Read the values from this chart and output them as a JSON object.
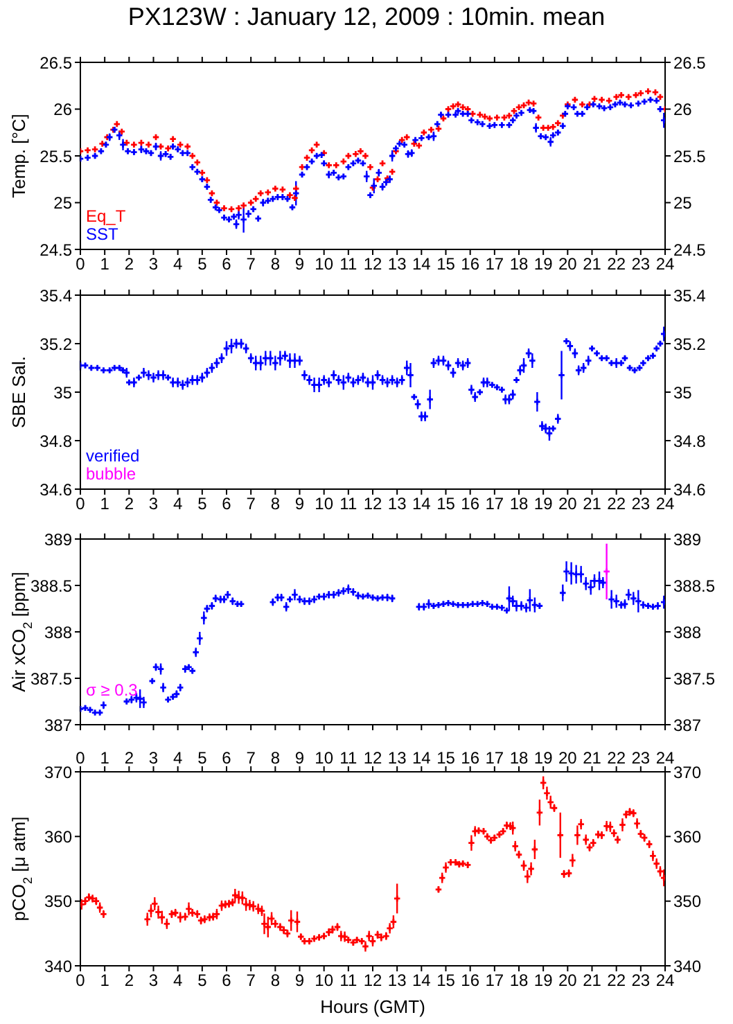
{
  "chart_data": [
    {
      "type": "scatter",
      "title": "PX123W : January 12, 2009 : 10min. mean",
      "ylabel": "Temp. [°C]",
      "xlim": [
        0,
        24
      ],
      "xticks": [
        0,
        1,
        2,
        3,
        4,
        5,
        6,
        7,
        8,
        9,
        10,
        11,
        12,
        13,
        14,
        15,
        16,
        17,
        18,
        19,
        20,
        21,
        22,
        23,
        24
      ],
      "ylim": [
        24.5,
        26.5
      ],
      "yticks": [
        24.5,
        25,
        25.5,
        26,
        26.5
      ],
      "y2lim": [
        24.5,
        26.5
      ],
      "y2ticks": [
        24.5,
        25,
        25.5,
        26,
        26.5
      ],
      "marker": "cross",
      "series": [
        {
          "name": "Eq_T",
          "color": "#ff0000",
          "x": [
            0,
            0.3,
            0.6,
            0.9,
            1.1,
            1.35,
            1.5,
            1.7,
            1.9,
            2.2,
            2.5,
            2.8,
            3.1,
            3.3,
            3.6,
            3.8,
            4.1,
            4.4,
            4.6,
            4.8,
            5.0,
            5.2,
            5.4,
            5.6,
            5.9,
            6.2,
            6.5,
            6.7,
            7.0,
            7.2,
            7.4,
            7.7,
            8.0,
            8.3,
            8.6,
            8.8,
            8.85,
            9.1,
            9.3,
            9.5,
            9.7,
            10.0,
            10.2,
            10.5,
            10.8,
            11.0,
            11.3,
            11.5,
            11.7,
            11.9,
            12.0,
            12.2,
            12.4,
            12.6,
            12.8,
            12.95,
            13.2,
            13.4,
            13.7,
            13.9,
            14.1,
            14.4,
            14.7,
            14.9,
            15.1,
            15.3,
            15.5,
            15.7,
            15.9,
            16.1,
            16.4,
            16.6,
            16.8,
            17.1,
            17.4,
            17.6,
            17.8,
            18.0,
            18.2,
            18.4,
            18.6,
            18.8,
            19.0,
            19.2,
            19.4,
            19.6,
            19.8,
            20.0,
            20.3,
            20.6,
            20.9,
            21.1,
            21.4,
            21.7,
            22.0,
            22.2,
            22.5,
            22.8,
            23.0,
            23.3,
            23.6,
            23.8,
            24.0
          ],
          "values": [
            25.55,
            25.56,
            25.57,
            25.63,
            25.7,
            25.78,
            25.84,
            25.76,
            25.64,
            25.62,
            25.64,
            25.62,
            25.7,
            25.6,
            25.58,
            25.68,
            25.62,
            25.6,
            25.5,
            25.43,
            25.32,
            25.24,
            25.1,
            25.0,
            24.94,
            24.93,
            24.94,
            24.97,
            25.0,
            25.04,
            25.1,
            25.11,
            25.15,
            25.14,
            25.08,
            25.05,
            25.15,
            25.38,
            25.48,
            25.56,
            25.62,
            25.53,
            25.4,
            25.4,
            25.44,
            25.5,
            25.52,
            25.55,
            25.5,
            25.38,
            25.16,
            25.25,
            25.42,
            25.26,
            25.33,
            25.55,
            25.67,
            25.7,
            25.63,
            25.61,
            25.75,
            25.78,
            25.79,
            25.9,
            26.0,
            26.03,
            26.05,
            26.02,
            26.0,
            25.95,
            25.94,
            25.92,
            25.9,
            25.91,
            25.91,
            25.93,
            25.98,
            26.02,
            26.04,
            26.07,
            26.06,
            25.91,
            25.8,
            25.8,
            25.81,
            25.85,
            25.93,
            26.05,
            26.1,
            26.05,
            26.05,
            26.11,
            26.1,
            26.09,
            26.13,
            26.15,
            26.13,
            26.15,
            26.17,
            26.19,
            26.18,
            26.13,
            26.0
          ]
        },
        {
          "name": "SST",
          "color": "#0000ff",
          "x": [
            0,
            0.3,
            0.6,
            0.85,
            1.05,
            1.2,
            1.4,
            1.6,
            1.75,
            1.95,
            2.2,
            2.5,
            2.7,
            2.9,
            3.1,
            3.3,
            3.5,
            3.7,
            3.8,
            4.0,
            4.2,
            4.4,
            4.6,
            4.8,
            5.0,
            5.2,
            5.35,
            5.55,
            5.7,
            5.9,
            6.1,
            6.3,
            6.4,
            6.5,
            6.7,
            6.9,
            7.1,
            7.3,
            7.5,
            7.7,
            7.9,
            8.1,
            8.3,
            8.5,
            8.7,
            8.85,
            9.1,
            9.3,
            9.5,
            9.7,
            9.9,
            10.0,
            10.2,
            10.4,
            10.6,
            10.8,
            11.0,
            11.2,
            11.4,
            11.6,
            11.75,
            11.9,
            12.05,
            12.25,
            12.4,
            12.55,
            12.7,
            12.8,
            12.95,
            13.1,
            13.3,
            13.45,
            13.6,
            13.75,
            14.0,
            14.3,
            14.5,
            14.65,
            14.8,
            15.1,
            15.4,
            15.5,
            15.7,
            15.9,
            16.05,
            16.3,
            16.5,
            16.8,
            17.0,
            17.3,
            17.6,
            17.75,
            17.9,
            18.1,
            18.45,
            18.6,
            18.7,
            18.9,
            19.1,
            19.3,
            19.4,
            19.6,
            19.8,
            19.9,
            20.0,
            20.25,
            20.4,
            20.6,
            20.8,
            21.05,
            21.3,
            21.5,
            21.75,
            21.95,
            22.15,
            22.35,
            22.6,
            22.9,
            23.15,
            23.4,
            23.65,
            23.8,
            23.95
          ],
          "values": [
            25.47,
            25.48,
            25.5,
            25.55,
            25.62,
            25.7,
            25.78,
            25.72,
            25.62,
            25.55,
            25.54,
            25.57,
            25.55,
            25.53,
            25.6,
            25.5,
            25.52,
            25.49,
            25.6,
            25.57,
            25.53,
            25.53,
            25.38,
            25.33,
            25.25,
            25.17,
            25.03,
            24.95,
            24.92,
            24.84,
            24.82,
            24.85,
            24.77,
            24.87,
            24.82,
            24.88,
            24.93,
            24.83,
            25.0,
            25.02,
            25.04,
            25.06,
            25.06,
            25.04,
            24.95,
            25.1,
            25.3,
            25.38,
            25.44,
            25.5,
            25.51,
            25.42,
            25.3,
            25.32,
            25.27,
            25.28,
            25.38,
            25.42,
            25.45,
            25.42,
            25.28,
            25.08,
            25.18,
            25.32,
            25.17,
            25.22,
            25.25,
            25.5,
            25.58,
            25.63,
            25.62,
            25.52,
            25.53,
            25.67,
            25.69,
            25.7,
            25.71,
            25.84,
            25.94,
            25.94,
            25.94,
            25.98,
            25.95,
            25.95,
            25.88,
            25.86,
            25.84,
            25.82,
            25.83,
            25.83,
            25.83,
            25.88,
            25.93,
            25.96,
            25.99,
            25.98,
            25.8,
            25.71,
            25.7,
            25.65,
            25.72,
            25.75,
            25.82,
            25.95,
            26.03,
            26.02,
            25.95,
            25.95,
            26.02,
            26.05,
            26.03,
            26.01,
            26.02,
            26.05,
            26.07,
            26.05,
            26.04,
            26.06,
            26.08,
            26.1,
            26.09,
            26.0,
            25.88
          ],
          "errors": [
            0.03,
            0.03,
            0.03,
            0.02,
            0.03,
            0.04,
            0.03,
            0.05,
            0.06,
            0.03,
            0.03,
            0.04,
            0.03,
            0.03,
            0.04,
            0.05,
            0.03,
            0.03,
            0.03,
            0.03,
            0.03,
            0.03,
            0.03,
            0.03,
            0.03,
            0.03,
            0.03,
            0.03,
            0.02,
            0.03,
            0.03,
            0.03,
            0.05,
            0.05,
            0.14,
            0.04,
            0.03,
            0.03,
            0.04,
            0.03,
            0.03,
            0.03,
            0.03,
            0.03,
            0.02,
            0.13,
            0.03,
            0.02,
            0.02,
            0.02,
            0.02,
            0.03,
            0.04,
            0.03,
            0.03,
            0.02,
            0.02,
            0.02,
            0.02,
            0.02,
            0.06,
            0.02,
            0.08,
            0.04,
            0.04,
            0.04,
            0.04,
            0.06,
            0.02,
            0.02,
            0.02,
            0.04,
            0.04,
            0.02,
            0.02,
            0.02,
            0.05,
            0.03,
            0.02,
            0.02,
            0.02,
            0.02,
            0.02,
            0.03,
            0.02,
            0.02,
            0.03,
            0.02,
            0.02,
            0.02,
            0.02,
            0.02,
            0.02,
            0.02,
            0.02,
            0.02,
            0.05,
            0.03,
            0.02,
            0.05,
            0.02,
            0.03,
            0.03,
            0.02,
            0.02,
            0.02,
            0.02,
            0.02,
            0.02,
            0.02,
            0.02,
            0.02,
            0.02,
            0.02,
            0.02,
            0.02,
            0.02,
            0.02,
            0.02,
            0.02,
            0.02,
            0.03,
            0.08
          ]
        }
      ]
    },
    {
      "type": "scatter",
      "ylabel": "SBE Sal.",
      "xlim": [
        0,
        24
      ],
      "xticks": [
        0,
        1,
        2,
        3,
        4,
        5,
        6,
        7,
        8,
        9,
        10,
        11,
        12,
        13,
        14,
        15,
        16,
        17,
        18,
        19,
        20,
        21,
        22,
        23,
        24
      ],
      "ylim": [
        34.6,
        35.4
      ],
      "yticks": [
        34.6,
        34.8,
        35,
        35.2,
        35.4
      ],
      "y2lim": [
        34.6,
        35.4
      ],
      "y2ticks": [
        34.6,
        34.8,
        35,
        35.2,
        35.4
      ],
      "marker": "cross",
      "series": [
        {
          "name": "verified",
          "color": "#0000ff",
          "x": [
            0,
            0.2,
            0.45,
            0.7,
            0.95,
            1.2,
            1.4,
            1.6,
            1.75,
            1.9,
            2.0,
            2.2,
            2.4,
            2.6,
            2.8,
            3.0,
            3.2,
            3.4,
            3.6,
            3.8,
            4.0,
            4.2,
            4.4,
            4.6,
            4.8,
            5.0,
            5.2,
            5.4,
            5.6,
            5.8,
            6.0,
            6.2,
            6.4,
            6.6,
            6.8,
            7.0,
            7.2,
            7.4,
            7.6,
            7.8,
            8.0,
            8.2,
            8.4,
            8.6,
            8.8,
            9.0,
            9.2,
            9.4,
            9.6,
            9.8,
            10.0,
            10.2,
            10.4,
            10.6,
            10.8,
            11.0,
            11.2,
            11.4,
            11.6,
            11.8,
            12.0,
            12.2,
            12.4,
            12.6,
            12.8,
            13.0,
            13.2,
            13.4,
            13.55,
            13.7,
            13.85,
            14.0,
            14.15,
            14.35,
            14.5,
            14.7,
            14.9,
            15.1,
            15.3,
            15.5,
            15.7,
            15.9,
            16.05,
            16.2,
            16.4,
            16.55,
            16.7,
            16.9,
            17.1,
            17.3,
            17.45,
            17.6,
            17.75,
            17.9,
            18.05,
            18.2,
            18.4,
            18.55,
            18.75,
            18.95,
            19.1,
            19.25,
            19.4,
            19.6,
            19.75,
            19.95,
            20.1,
            20.3,
            20.45,
            20.65,
            20.85,
            21.0,
            21.2,
            21.4,
            21.6,
            21.8,
            22.0,
            22.2,
            22.35,
            22.55,
            22.75,
            22.95,
            23.1,
            23.3,
            23.5,
            23.65,
            23.8,
            23.95
          ],
          "values": [
            35.11,
            35.11,
            35.1,
            35.1,
            35.09,
            35.09,
            35.1,
            35.1,
            35.09,
            35.08,
            35.04,
            35.04,
            35.06,
            35.08,
            35.07,
            35.06,
            35.07,
            35.07,
            35.06,
            35.04,
            35.04,
            35.03,
            35.04,
            35.05,
            35.05,
            35.06,
            35.08,
            35.1,
            35.12,
            35.14,
            35.18,
            35.19,
            35.2,
            35.2,
            35.18,
            35.14,
            35.12,
            35.12,
            35.14,
            35.14,
            35.12,
            35.14,
            35.15,
            35.13,
            35.13,
            35.13,
            35.07,
            35.05,
            35.03,
            35.03,
            35.05,
            35.04,
            35.07,
            35.05,
            35.04,
            35.06,
            35.04,
            35.05,
            35.06,
            35.04,
            35.04,
            35.07,
            35.05,
            35.04,
            35.05,
            35.04,
            35.05,
            35.1,
            35.07,
            34.98,
            34.95,
            34.9,
            34.9,
            34.97,
            35.12,
            35.13,
            35.13,
            35.11,
            35.08,
            35.12,
            35.11,
            35.12,
            35.01,
            34.98,
            35.0,
            35.04,
            35.04,
            35.03,
            35.02,
            35.01,
            34.97,
            34.97,
            34.99,
            35.05,
            35.09,
            35.11,
            35.16,
            35.13,
            34.96,
            34.86,
            34.85,
            34.83,
            34.85,
            34.89,
            35.07,
            35.21,
            35.19,
            35.16,
            35.09,
            35.1,
            35.13,
            35.18,
            35.16,
            35.14,
            35.14,
            35.12,
            35.12,
            35.12,
            35.14,
            35.1,
            35.09,
            35.1,
            35.12,
            35.14,
            35.15,
            35.18,
            35.2,
            35.24
          ],
          "errors": [
            0.02,
            0.01,
            0.01,
            0.01,
            0.01,
            0.01,
            0.01,
            0.01,
            0.01,
            0.02,
            0.01,
            0.02,
            0.01,
            0.02,
            0.02,
            0.02,
            0.02,
            0.02,
            0.01,
            0.02,
            0.02,
            0.02,
            0.02,
            0.02,
            0.02,
            0.02,
            0.02,
            0.02,
            0.02,
            0.02,
            0.03,
            0.03,
            0.02,
            0.02,
            0.02,
            0.02,
            0.03,
            0.03,
            0.03,
            0.03,
            0.03,
            0.03,
            0.02,
            0.03,
            0.03,
            0.02,
            0.02,
            0.02,
            0.03,
            0.03,
            0.02,
            0.02,
            0.02,
            0.02,
            0.03,
            0.02,
            0.02,
            0.02,
            0.02,
            0.02,
            0.03,
            0.02,
            0.02,
            0.02,
            0.02,
            0.02,
            0.02,
            0.03,
            0.05,
            0.01,
            0.02,
            0.02,
            0.02,
            0.04,
            0.02,
            0.02,
            0.02,
            0.02,
            0.02,
            0.02,
            0.02,
            0.02,
            0.02,
            0.02,
            0.01,
            0.02,
            0.02,
            0.01,
            0.01,
            0.01,
            0.02,
            0.02,
            0.02,
            0.01,
            0.02,
            0.03,
            0.02,
            0.03,
            0.04,
            0.02,
            0.02,
            0.03,
            0.01,
            0.02,
            0.1,
            0.01,
            0.02,
            0.02,
            0.02,
            0.02,
            0.02,
            0.01,
            0.01,
            0.01,
            0.01,
            0.01,
            0.02,
            0.01,
            0.01,
            0.01,
            0.01,
            0.01,
            0.01,
            0.01,
            0.01,
            0.01,
            0.01,
            0.03
          ]
        },
        {
          "name": "bubble",
          "color": "#ff00ff"
        }
      ]
    },
    {
      "type": "scatter",
      "ylabel": "Air xCO$_{2}$ [ppm]",
      "xlim": [
        0,
        24
      ],
      "xticks": [
        0,
        1,
        2,
        3,
        4,
        5,
        6,
        7,
        8,
        9,
        10,
        11,
        12,
        13,
        14,
        15,
        16,
        17,
        18,
        19,
        20,
        21,
        22,
        23,
        24
      ],
      "ylim": [
        387,
        389
      ],
      "yticks": [
        387,
        387.5,
        388,
        388.5,
        389
      ],
      "y2lim": [
        387,
        389
      ],
      "y2ticks": [
        387,
        387.5,
        388,
        388.5,
        389
      ],
      "tick_labels": "y",
      "marker": "cross",
      "series": [
        {
          "color": "#0000ff",
          "x": [
            0,
            0.2,
            0.4,
            0.6,
            0.8,
            0.95,
            1.9,
            2.1,
            2.3,
            2.45,
            2.6,
            2.95,
            3.1,
            3.3,
            3.4,
            3.6,
            3.8,
            3.95,
            4.1,
            4.3,
            4.45,
            4.6,
            4.74,
            4.9,
            5.07,
            5.2,
            5.4,
            5.55,
            5.75,
            5.9,
            6.05,
            6.25,
            6.45,
            6.6,
            7.9,
            8.1,
            8.25,
            8.45,
            8.6,
            8.8,
            9.0,
            9.2,
            9.4,
            9.6,
            9.8,
            10.0,
            10.2,
            10.4,
            10.6,
            10.8,
            11.0,
            11.2,
            11.4,
            11.6,
            11.8,
            12.0,
            12.2,
            12.4,
            12.6,
            12.8,
            13.9,
            14.1,
            14.3,
            14.5,
            14.7,
            14.9,
            15.1,
            15.3,
            15.5,
            15.7,
            15.9,
            16.1,
            16.3,
            16.5,
            16.7,
            16.9,
            17.1,
            17.3,
            17.5,
            17.6,
            17.75,
            17.9,
            18.1,
            18.3,
            18.45,
            18.65,
            18.85,
            19.8,
            19.95,
            20.15,
            20.35,
            20.55,
            20.75,
            20.95,
            21.1,
            21.3,
            21.45,
            21.8,
            22.0,
            22.2,
            22.35,
            22.5,
            22.7,
            22.9,
            23.1,
            23.3,
            23.5,
            23.7,
            23.95
          ],
          "values": [
            387.17,
            387.18,
            387.16,
            387.13,
            387.13,
            387.21,
            387.25,
            387.27,
            387.29,
            387.28,
            387.24,
            387.47,
            387.62,
            387.6,
            387.4,
            387.27,
            387.3,
            387.33,
            387.4,
            387.6,
            387.62,
            387.58,
            387.78,
            387.93,
            388.15,
            388.25,
            388.28,
            388.36,
            388.35,
            388.35,
            388.4,
            388.33,
            388.3,
            388.3,
            388.32,
            388.37,
            388.37,
            388.27,
            388.35,
            388.4,
            388.35,
            388.33,
            388.33,
            388.35,
            388.38,
            388.38,
            388.4,
            388.4,
            388.42,
            388.44,
            388.46,
            388.43,
            388.39,
            388.38,
            388.39,
            388.37,
            388.36,
            388.37,
            388.37,
            388.36,
            388.27,
            388.27,
            388.3,
            388.28,
            388.29,
            388.3,
            388.31,
            388.3,
            388.29,
            388.29,
            388.29,
            388.3,
            388.3,
            388.31,
            388.3,
            388.27,
            388.27,
            388.26,
            388.23,
            388.36,
            388.33,
            388.28,
            388.28,
            388.26,
            388.34,
            388.29,
            388.28,
            388.42,
            388.65,
            388.63,
            388.62,
            388.62,
            388.52,
            388.48,
            388.55,
            388.55,
            388.53,
            388.35,
            388.33,
            388.29,
            388.3,
            388.4,
            388.36,
            388.33,
            388.29,
            388.28,
            388.27,
            388.28,
            388.32
          ],
          "errors": [
            0.03,
            0.03,
            0.02,
            0.02,
            0.02,
            0.04,
            0.03,
            0.04,
            0.05,
            0.1,
            0.06,
            0.02,
            0.04,
            0.06,
            0.05,
            0.03,
            0.03,
            0.04,
            0.04,
            0.04,
            0.03,
            0.03,
            0.05,
            0.07,
            0.07,
            0.04,
            0.04,
            0.04,
            0.04,
            0.04,
            0.04,
            0.04,
            0.03,
            0.03,
            0.04,
            0.04,
            0.04,
            0.05,
            0.03,
            0.06,
            0.04,
            0.04,
            0.04,
            0.04,
            0.03,
            0.04,
            0.04,
            0.04,
            0.04,
            0.04,
            0.05,
            0.04,
            0.04,
            0.03,
            0.03,
            0.03,
            0.03,
            0.03,
            0.04,
            0.04,
            0.04,
            0.04,
            0.05,
            0.03,
            0.03,
            0.03,
            0.03,
            0.02,
            0.02,
            0.03,
            0.02,
            0.03,
            0.02,
            0.03,
            0.03,
            0.02,
            0.02,
            0.02,
            0.02,
            0.13,
            0.06,
            0.06,
            0.05,
            0.05,
            0.12,
            0.08,
            0.03,
            0.09,
            0.11,
            0.12,
            0.1,
            0.09,
            0.07,
            0.08,
            0.07,
            0.1,
            0.06,
            0.1,
            0.07,
            0.04,
            0.05,
            0.06,
            0.07,
            0.12,
            0.04,
            0.03,
            0.03,
            0.04,
            0.07
          ]
        },
        {
          "name": "σ ≥ 0.3",
          "color": "#ff00ff",
          "x": [
            21.6
          ],
          "values": [
            388.65
          ],
          "errors": [
            [
              388.35,
              388.95
            ]
          ]
        }
      ]
    },
    {
      "type": "scatter",
      "xlabel": "Hours (GMT)",
      "ylabel": "pCO$_{2}$ [μ atm]",
      "xlim": [
        0,
        24
      ],
      "xticks": [
        0,
        1,
        2,
        3,
        4,
        5,
        6,
        7,
        8,
        9,
        10,
        11,
        12,
        13,
        14,
        15,
        16,
        17,
        18,
        19,
        20,
        21,
        22,
        23,
        24
      ],
      "x2lim": [
        0,
        24
      ],
      "x2ticks": [
        0,
        1,
        2,
        3,
        4,
        5,
        6,
        7,
        8,
        9,
        10,
        11,
        12,
        13,
        14,
        15,
        16,
        17,
        18,
        19,
        20,
        21,
        22,
        23,
        24
      ],
      "ylim": [
        340,
        370
      ],
      "yticks": [
        340,
        350,
        360,
        370
      ],
      "y2lim": [
        340,
        370
      ],
      "y2ticks": [
        340,
        350,
        360,
        370
      ],
      "marker": "cross",
      "series": [
        {
          "color": "#ff0000",
          "x": [
            0.05,
            0.2,
            0.35,
            0.5,
            0.65,
            0.8,
            0.95,
            2.75,
            2.9,
            3.05,
            3.2,
            3.35,
            3.55,
            3.75,
            3.9,
            4.1,
            4.3,
            4.45,
            4.6,
            4.8,
            4.95,
            5.1,
            5.3,
            5.45,
            5.6,
            5.8,
            5.95,
            6.1,
            6.25,
            6.35,
            6.5,
            6.65,
            6.8,
            6.95,
            7.1,
            7.3,
            7.45,
            7.55,
            7.7,
            7.85,
            8.0,
            8.2,
            8.35,
            8.5,
            8.65,
            8.9,
            9.05,
            9.2,
            9.4,
            9.6,
            9.8,
            10.0,
            10.2,
            10.35,
            10.55,
            10.7,
            10.85,
            11.0,
            11.2,
            11.35,
            11.55,
            11.7,
            11.85,
            12.0,
            12.2,
            12.35,
            12.55,
            12.7,
            12.85,
            13.0,
            14.7,
            14.85,
            15.0,
            15.2,
            15.4,
            15.55,
            15.7,
            15.9,
            16.05,
            16.2,
            16.35,
            16.55,
            16.7,
            16.85,
            17.0,
            17.2,
            17.35,
            17.5,
            17.65,
            17.75,
            17.85,
            18.0,
            18.2,
            18.35,
            18.5,
            18.65,
            18.85,
            19.0,
            19.15,
            19.3,
            19.45,
            19.7,
            19.85,
            20.05,
            20.2,
            20.4,
            20.55,
            20.75,
            20.9,
            21.05,
            21.25,
            21.4,
            21.6,
            21.75,
            21.9,
            22.05,
            22.25,
            22.4,
            22.55,
            22.7,
            22.85,
            23.0,
            23.15,
            23.35,
            23.5,
            23.65,
            23.8,
            23.95
          ],
          "values": [
            349.5,
            350.0,
            350.6,
            350.4,
            350.0,
            349.0,
            348.0,
            347.2,
            348.5,
            349.6,
            348.3,
            347.5,
            346.5,
            348.0,
            348.2,
            347.5,
            347.6,
            348.8,
            348.2,
            348.0,
            347.0,
            347.2,
            347.5,
            347.6,
            348.0,
            349.3,
            349.5,
            349.6,
            349.8,
            350.9,
            350.6,
            350.5,
            349.5,
            349.4,
            349.2,
            348.8,
            348.5,
            346.5,
            346.0,
            347.3,
            346.5,
            346.0,
            345.5,
            345.0,
            347.0,
            346.8,
            344.5,
            343.8,
            343.8,
            344.2,
            344.4,
            344.6,
            345.2,
            345.6,
            346.0,
            344.6,
            344.5,
            344.0,
            343.6,
            344.0,
            343.8,
            343.0,
            344.6,
            343.8,
            344.8,
            344.4,
            344.6,
            345.8,
            346.8,
            350.4,
            351.8,
            353.6,
            355.2,
            356.0,
            356.0,
            355.7,
            355.8,
            355.6,
            359.0,
            360.8,
            360.9,
            360.8,
            360.0,
            359.4,
            359.8,
            360.3,
            360.8,
            361.7,
            361.6,
            361.3,
            358.5,
            357.2,
            355.5,
            353.8,
            355.0,
            358.0,
            363.7,
            368.3,
            366.7,
            365.3,
            364.4,
            360.2,
            354.2,
            354.3,
            356.3,
            360.2,
            361.9,
            359.5,
            358.3,
            359.0,
            360.3,
            360.2,
            361.6,
            361.5,
            360.5,
            359.5,
            361.8,
            363.4,
            363.8,
            363.6,
            362.0,
            360.4,
            359.8,
            358.8,
            357.0,
            355.8,
            354.6,
            353.6
          ],
          "errors": [
            0.8,
            0.6,
            0.6,
            0.6,
            0.6,
            0.8,
            0.6,
            1.0,
            1.0,
            1.0,
            1.0,
            1.0,
            0.8,
            0.6,
            0.6,
            0.8,
            0.6,
            1.0,
            0.6,
            0.6,
            0.6,
            0.6,
            0.6,
            0.6,
            0.8,
            0.8,
            0.6,
            0.6,
            0.6,
            1.0,
            1.0,
            1.0,
            1.0,
            0.8,
            0.8,
            0.8,
            0.8,
            1.6,
            1.6,
            1.0,
            0.6,
            0.6,
            0.6,
            0.6,
            1.6,
            1.6,
            0.5,
            0.5,
            0.5,
            0.5,
            0.5,
            0.5,
            0.6,
            0.6,
            0.6,
            0.8,
            0.8,
            0.5,
            0.5,
            0.5,
            0.5,
            0.8,
            0.8,
            0.8,
            0.6,
            0.6,
            0.6,
            0.8,
            1.0,
            2.3,
            0.5,
            0.8,
            0.8,
            0.5,
            0.5,
            0.5,
            0.5,
            0.5,
            1.2,
            0.8,
            0.5,
            0.5,
            0.5,
            0.5,
            0.5,
            0.5,
            0.5,
            0.6,
            0.6,
            1.0,
            0.8,
            0.6,
            0.8,
            1.0,
            1.0,
            1.5,
            2.0,
            1.0,
            1.0,
            1.0,
            0.6,
            3.5,
            0.6,
            0.6,
            1.0,
            1.5,
            0.8,
            0.8,
            0.6,
            0.6,
            0.6,
            0.6,
            0.8,
            0.8,
            0.6,
            0.6,
            1.0,
            0.6,
            0.6,
            0.6,
            0.8,
            0.6,
            0.6,
            0.6,
            0.8,
            0.8,
            0.8,
            1.3
          ]
        }
      ]
    }
  ]
}
